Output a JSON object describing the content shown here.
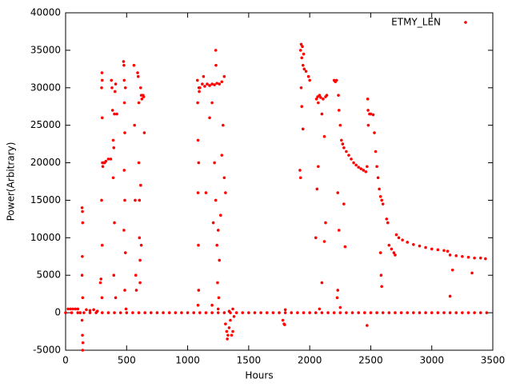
{
  "chart_data": {
    "type": "scatter",
    "xlabel": "Hours",
    "ylabel": "Power(Arbitrary)",
    "xlim": [
      0,
      3500
    ],
    "xticks": [
      0,
      500,
      1000,
      1500,
      2000,
      2500,
      3000,
      3500
    ],
    "ylim": [
      -5000,
      40000
    ],
    "yticks": [
      -5000,
      0,
      5000,
      10000,
      15000,
      20000,
      25000,
      30000,
      35000,
      40000
    ],
    "legend": "top-right",
    "x": [
      0,
      50,
      100,
      150,
      200,
      250,
      300,
      350,
      400,
      450,
      500,
      550,
      600,
      650,
      700,
      750,
      800,
      850,
      900,
      950,
      1000,
      1050,
      1100,
      1150,
      1200,
      1250,
      1300,
      1350,
      1400,
      1450,
      1500,
      1550,
      1600,
      1650,
      1700,
      1750,
      1800,
      1850,
      1900,
      1950,
      2000,
      2050,
      2100,
      2150,
      2200,
      2250,
      2300,
      2350,
      2400,
      2450,
      2500,
      2550,
      2600,
      2650,
      2700,
      2750,
      2800,
      2850,
      2900,
      2950,
      3000,
      3050,
      3100,
      3150,
      3200,
      3250,
      3300,
      3350,
      3400,
      3450,
      20,
      40,
      60,
      80,
      100,
      120,
      135,
      138,
      140,
      137,
      135,
      140,
      135,
      138,
      140,
      142,
      170,
      200,
      230,
      260,
      285,
      290,
      295,
      298,
      300,
      300,
      302,
      305,
      310,
      320,
      330,
      350,
      370,
      300,
      298,
      295,
      375,
      380,
      385,
      390,
      395,
      400,
      405,
      410,
      400,
      395,
      410,
      420,
      390,
      475,
      478,
      480,
      482,
      485,
      480,
      485,
      490,
      490,
      485,
      495,
      478,
      560,
      565,
      570,
      575,
      580,
      590,
      595,
      600,
      600,
      605,
      605,
      610,
      610,
      615,
      620,
      620,
      615,
      625,
      635,
      640,
      645,
      1080,
      1082,
      1085,
      1085,
      1088,
      1090,
      1085,
      1092,
      1095,
      1100,
      1090,
      1120,
      1140,
      1160,
      1180,
      1200,
      1220,
      1240,
      1260,
      1280,
      1300,
      1230,
      1232,
      1130,
      1150,
      1180,
      1200,
      1210,
      1220,
      1230,
      1240,
      1245,
      1250,
      1255,
      1260,
      1270,
      1280,
      1290,
      1300,
      1310,
      1250,
      1200,
      1310,
      1320,
      1330,
      1340,
      1350,
      1360,
      1370,
      1380,
      1370,
      1340,
      1325,
      1780,
      1790,
      1795,
      1800,
      1920,
      1925,
      1930,
      1935,
      1940,
      1945,
      1950,
      1955,
      1970,
      1990,
      2000,
      1930,
      1935,
      1945,
      1925,
      2050,
      2055,
      2060,
      2065,
      2070,
      2080,
      2090,
      2100,
      2110,
      2120,
      2130,
      2140,
      2130,
      2120,
      2070,
      2100,
      2080,
      2200,
      2210,
      2220,
      2225,
      2230,
      2230,
      2235,
      2240,
      2250,
      2260,
      2270,
      2280,
      2280,
      2290,
      2240,
      2250,
      2300,
      2320,
      2340,
      2360,
      2380,
      2400,
      2420,
      2440,
      2460,
      2470,
      2475,
      2478,
      2480,
      2470,
      2490,
      2500,
      2520,
      2530,
      2540,
      2550,
      2560,
      2570,
      2580,
      2590,
      2600,
      2580,
      2590,
      2585,
      2630,
      2640,
      2650,
      2670,
      2690,
      2700,
      2710,
      2730,
      2760,
      2800,
      2850,
      2900,
      2950,
      3000,
      3050,
      3100,
      3130,
      3150,
      3200,
      3250,
      3300,
      3350,
      3400,
      3440,
      3150,
      3330,
      3170
    ],
    "series": [
      {
        "name": "ETMY_LEN",
        "color": "#ff0000",
        "values": [
          0,
          0,
          0,
          0,
          0,
          0,
          0,
          0,
          0,
          0,
          0,
          0,
          0,
          0,
          0,
          0,
          0,
          0,
          0,
          0,
          0,
          0,
          0,
          0,
          0,
          0,
          0,
          0,
          0,
          0,
          0,
          0,
          0,
          0,
          0,
          0,
          0,
          0,
          0,
          0,
          0,
          0,
          0,
          0,
          0,
          0,
          0,
          0,
          0,
          0,
          0,
          0,
          0,
          0,
          0,
          0,
          0,
          0,
          0,
          0,
          0,
          0,
          0,
          0,
          0,
          0,
          0,
          0,
          0,
          0,
          500,
          500,
          500,
          500,
          500,
          0,
          14000,
          13500,
          12000,
          7500,
          5000,
          2000,
          -1000,
          -3000,
          -5000,
          -4000,
          400,
          300,
          400,
          200,
          4000,
          4500,
          30000,
          32000,
          31000,
          26000,
          20000,
          19500,
          20000,
          20000,
          20200,
          20500,
          20500,
          9000,
          2000,
          15000,
          31000,
          30000,
          27000,
          23000,
          22000,
          26500,
          29500,
          30500,
          12000,
          5000,
          2000,
          26500,
          18000,
          33500,
          33000,
          31000,
          28000,
          24000,
          19000,
          15000,
          30000,
          8000,
          3000,
          500,
          11000,
          33000,
          25000,
          15000,
          5000,
          3000,
          32000,
          31500,
          28000,
          20000,
          15000,
          10000,
          7000,
          4000,
          30000,
          29000,
          9000,
          17000,
          28500,
          29000,
          28800,
          24000,
          31000,
          28000,
          23000,
          16000,
          9000,
          3000,
          1000,
          30000,
          29500,
          30000,
          20000,
          30500,
          30200,
          30500,
          30300,
          30500,
          30400,
          30600,
          30500,
          30800,
          31500,
          35000,
          33000,
          31500,
          16000,
          26000,
          28000,
          12000,
          20000,
          15000,
          9000,
          4000,
          11000,
          2000,
          7000,
          13000,
          21000,
          25000,
          18000,
          16000,
          500,
          1000,
          -1500,
          -2500,
          -3000,
          -2000,
          -1000,
          -3000,
          -2500,
          -500,
          500,
          200,
          -3500,
          -1000,
          -1500,
          -1600,
          400,
          19000,
          35000,
          35800,
          34000,
          35500,
          33000,
          34500,
          32500,
          32200,
          31500,
          31000,
          30000,
          27500,
          24500,
          18000,
          10000,
          28500,
          16500,
          28800,
          28000,
          29000,
          28700,
          26500,
          28500,
          23500,
          28800,
          29000,
          12000,
          9500,
          19500,
          4000,
          500,
          31000,
          30800,
          31000,
          2000,
          16000,
          3000,
          29000,
          27000,
          25000,
          23000,
          22500,
          22000,
          14500,
          8800,
          11000,
          700,
          21500,
          21000,
          20500,
          20000,
          19700,
          19400,
          19200,
          19000,
          18800,
          19500,
          28500,
          27000,
          25000,
          -1700,
          26500,
          26500,
          26400,
          24000,
          21500,
          19500,
          18000,
          16500,
          15500,
          15000,
          14500,
          8000,
          3500,
          5000,
          12500,
          12000,
          9000,
          8500,
          8000,
          7700,
          10400,
          10000,
          9700,
          9400,
          9100,
          8900,
          8700,
          8500,
          8400,
          8300,
          8200,
          7700,
          7600,
          7500,
          7400,
          7300,
          7300,
          7200,
          2200,
          5300,
          5700
        ]
      }
    ]
  }
}
